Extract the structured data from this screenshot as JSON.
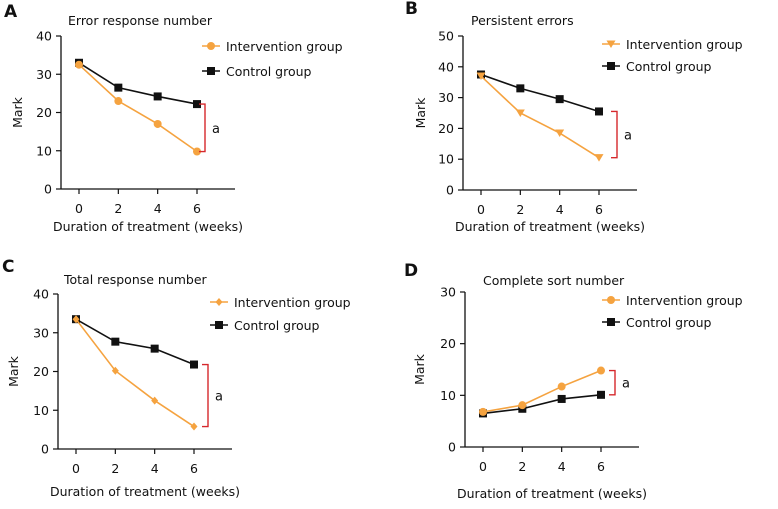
{
  "colors": {
    "intervention": "#f5a340",
    "control": "#111111",
    "bracket": "#d6282c",
    "axis": "#111111"
  },
  "chart_data": [
    {
      "panel": "A",
      "type": "line",
      "title": "Error response number",
      "xlabel": "Duration of treatment (weeks)",
      "ylabel": "Mark",
      "ylim": [
        0,
        40
      ],
      "yticks": [
        0,
        10,
        20,
        30,
        40
      ],
      "xticks": [
        0,
        2,
        4,
        6
      ],
      "x": [
        0,
        2,
        4,
        6
      ],
      "series": [
        {
          "name": "Intervention group",
          "marker": "circle",
          "values": [
            32.5,
            23,
            17,
            9.8
          ]
        },
        {
          "name": "Control group",
          "marker": "square",
          "values": [
            33,
            26.5,
            24.2,
            22.2
          ]
        }
      ],
      "annotation": "a",
      "legend_position": "top-right"
    },
    {
      "panel": "B",
      "type": "line",
      "title": "Persistent errors",
      "xlabel": "Duration of treatment (weeks)",
      "ylabel": "Mark",
      "ylim": [
        0,
        50
      ],
      "yticks": [
        0,
        10,
        20,
        30,
        40,
        50
      ],
      "xticks": [
        0,
        2,
        4,
        6
      ],
      "x": [
        0,
        2,
        4,
        6
      ],
      "series": [
        {
          "name": "Intervention group",
          "marker": "triangle-down",
          "values": [
            37,
            25,
            18.5,
            10.5
          ]
        },
        {
          "name": "Control group",
          "marker": "square",
          "values": [
            37.5,
            33,
            29.5,
            25.5
          ]
        }
      ],
      "annotation": "a",
      "legend_position": "top-right"
    },
    {
      "panel": "C",
      "type": "line",
      "title": "Total response number",
      "xlabel": "Duration of treatment (weeks)",
      "ylabel": "Mark",
      "ylim": [
        0,
        40
      ],
      "yticks": [
        0,
        10,
        20,
        30,
        40
      ],
      "xticks": [
        0,
        2,
        4,
        6
      ],
      "x": [
        0,
        2,
        4,
        6
      ],
      "series": [
        {
          "name": "Intervention group",
          "marker": "diamond",
          "values": [
            33.5,
            20.2,
            12.5,
            5.8
          ]
        },
        {
          "name": "Control group",
          "marker": "square",
          "values": [
            33.5,
            27.7,
            25.9,
            21.8
          ]
        }
      ],
      "annotation": "a",
      "legend_position": "top-right"
    },
    {
      "panel": "D",
      "type": "line",
      "title": "Complete sort number",
      "xlabel": "Duration of treatment (weeks)",
      "ylabel": "Mark",
      "ylim": [
        0,
        30
      ],
      "yticks": [
        0,
        10,
        20,
        30
      ],
      "xticks": [
        0,
        2,
        4,
        6
      ],
      "x": [
        0,
        2,
        4,
        6
      ],
      "series": [
        {
          "name": "Intervention group",
          "marker": "circle",
          "values": [
            6.8,
            8.1,
            11.7,
            14.8
          ]
        },
        {
          "name": "Control group",
          "marker": "square",
          "values": [
            6.5,
            7.4,
            9.3,
            10.1
          ]
        }
      ],
      "annotation": "a",
      "legend_position": "top-right"
    }
  ]
}
